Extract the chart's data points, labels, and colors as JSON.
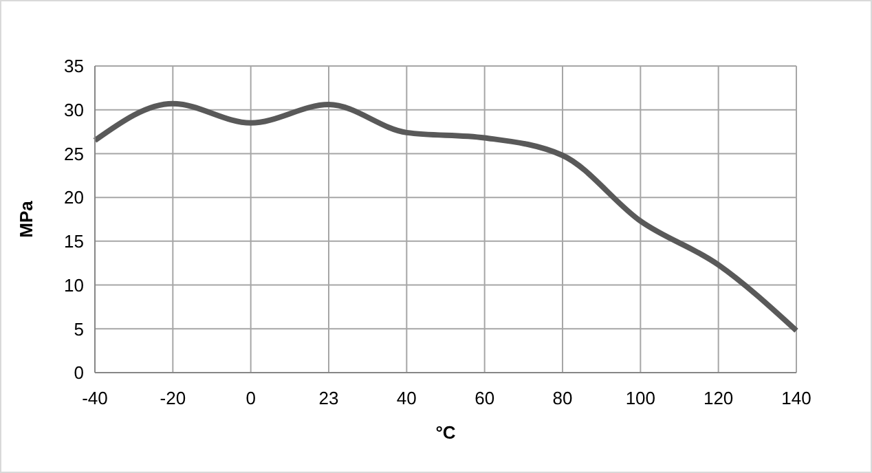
{
  "chart_data": {
    "type": "line",
    "xlabel": "°C",
    "ylabel": "MPa",
    "categories": [
      "-40",
      "-20",
      "0",
      "23",
      "40",
      "60",
      "80",
      "100",
      "120",
      "140"
    ],
    "series": [
      {
        "color": "#595959",
        "values": [
          26.5,
          30.7,
          28.5,
          30.6,
          27.4,
          26.8,
          24.8,
          17.3,
          12.3,
          4.8
        ]
      }
    ],
    "ylim": [
      0,
      35
    ],
    "yticks": [
      0,
      5,
      10,
      15,
      20,
      25,
      30,
      35
    ],
    "grid": true,
    "marker": "none",
    "line_style": "solid"
  }
}
